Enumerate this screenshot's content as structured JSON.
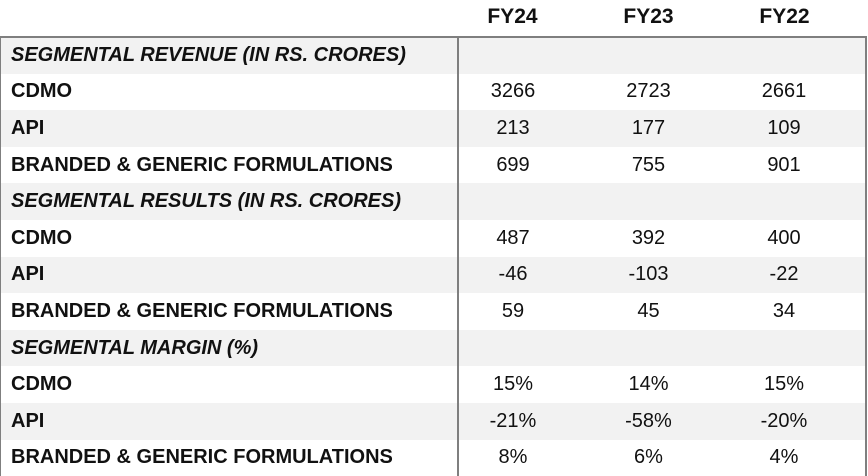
{
  "colors": {
    "stripe": "#F2F2F2",
    "border": "#7F7F7F",
    "text": "#111111",
    "background": "#FFFFFF"
  },
  "header": {
    "columns": [
      "FY24",
      "FY23",
      "FY22"
    ]
  },
  "sections": [
    {
      "title": "SEGMENTAL REVENUE (IN RS. CRORES)",
      "rows": [
        {
          "label": "CDMO",
          "values": [
            "3266",
            "2723",
            "2661"
          ]
        },
        {
          "label": "API",
          "values": [
            "213",
            "177",
            "109"
          ]
        },
        {
          "label": "BRANDED & GENERIC FORMULATIONS",
          "values": [
            "699",
            "755",
            "901"
          ]
        }
      ]
    },
    {
      "title": "SEGMENTAL RESULTS (IN RS. CRORES)",
      "rows": [
        {
          "label": "CDMO",
          "values": [
            "487",
            "392",
            "400"
          ]
        },
        {
          "label": "API",
          "values": [
            "-46",
            "-103",
            "-22"
          ]
        },
        {
          "label": "BRANDED & GENERIC FORMULATIONS",
          "values": [
            "59",
            "45",
            "34"
          ]
        }
      ]
    },
    {
      "title": "SEGMENTAL MARGIN (%)",
      "rows": [
        {
          "label": "CDMO",
          "values": [
            "15%",
            "14%",
            "15%"
          ]
        },
        {
          "label": "API",
          "values": [
            "-21%",
            "-58%",
            "-20%"
          ]
        },
        {
          "label": "BRANDED & GENERIC FORMULATIONS",
          "values": [
            "8%",
            "6%",
            "4%"
          ]
        }
      ]
    }
  ],
  "chart_data": {
    "type": "table",
    "columns": [
      "",
      "FY24",
      "FY23",
      "FY22"
    ],
    "rows": [
      [
        "SEGMENTAL REVENUE (IN RS. CRORES)",
        null,
        null,
        null
      ],
      [
        "CDMO",
        3266,
        2723,
        2661
      ],
      [
        "API",
        213,
        177,
        109
      ],
      [
        "BRANDED & GENERIC FORMULATIONS",
        699,
        755,
        901
      ],
      [
        "SEGMENTAL RESULTS (IN RS. CRORES)",
        null,
        null,
        null
      ],
      [
        "CDMO",
        487,
        392,
        400
      ],
      [
        "API",
        -46,
        -103,
        -22
      ],
      [
        "BRANDED & GENERIC FORMULATIONS",
        59,
        45,
        34
      ],
      [
        "SEGMENTAL MARGIN (%)",
        null,
        null,
        null
      ],
      [
        "CDMO",
        "15%",
        "14%",
        "15%"
      ],
      [
        "API",
        "-21%",
        "-58%",
        "-20%"
      ],
      [
        "BRANDED & GENERIC FORMULATIONS",
        "8%",
        "6%",
        "4%"
      ]
    ]
  }
}
